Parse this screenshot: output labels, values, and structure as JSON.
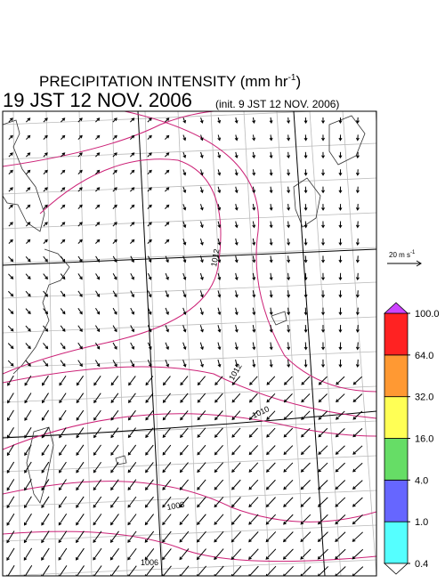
{
  "header": {
    "title": "PRECIPITATION INTENSITY (mm hr",
    "title_exponent": "-1",
    "title_close": ")",
    "valid_time": "19 JST 12 NOV. 2006",
    "init_time": "(init. 9 JST 12 NOV. 2006)"
  },
  "vector_legend": {
    "label": "20 m s",
    "exponent": "-1"
  },
  "isobar_labels": [
    "1012",
    "1012",
    "1010",
    "1008",
    "1006"
  ],
  "colorbar": {
    "levels": [
      {
        "value": 0.4,
        "label": "0.4"
      },
      {
        "value": 1,
        "label": "1.0"
      },
      {
        "value": 4,
        "label": "4.0"
      },
      {
        "value": 16,
        "label": "16.0"
      },
      {
        "value": 32,
        "label": "32.0"
      },
      {
        "value": 64,
        "label": "64.0"
      },
      {
        "value": 100,
        "label": "100.0"
      }
    ],
    "colors": [
      "#55ffff",
      "#6666ff",
      "#66dd66",
      "#ffff55",
      "#ff9933",
      "#ff2222"
    ],
    "over_color": "#cc44ff",
    "under_color": "#ffffff"
  }
}
